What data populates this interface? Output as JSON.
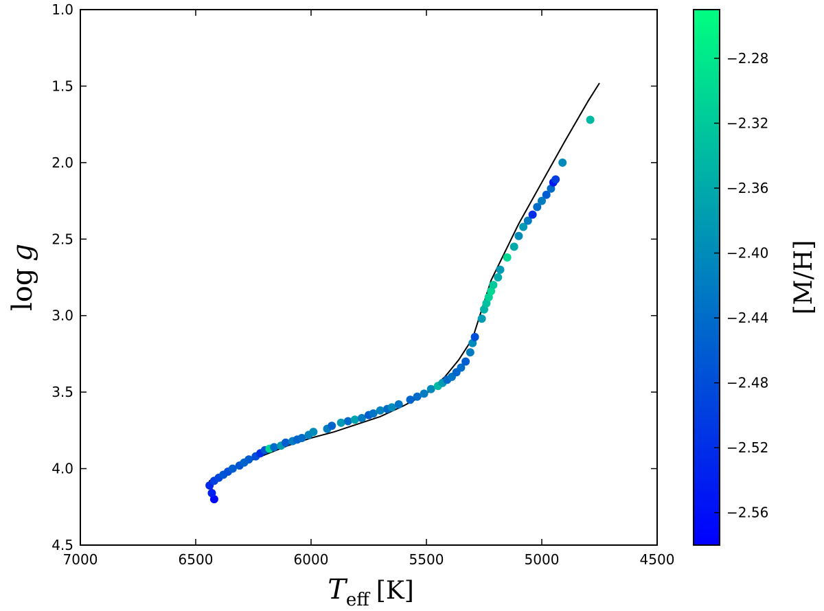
{
  "chart_data": {
    "type": "scatter",
    "title": "",
    "xlabel": "T_eff [K]",
    "xlabel_main": "T",
    "xlabel_sub": "eff",
    "xlabel_unit": "[K]",
    "ylabel": "log g",
    "ylabel_func": "log",
    "ylabel_var": "g",
    "xlim": [
      7000,
      4500
    ],
    "ylim": [
      4.5,
      1.0
    ],
    "x_inverted": true,
    "y_inverted": true,
    "grid": false,
    "x_ticks": [
      "7000",
      "6500",
      "6000",
      "5500",
      "5000",
      "4500"
    ],
    "y_ticks": [
      "1.0",
      "1.5",
      "2.0",
      "2.5",
      "3.0",
      "3.5",
      "4.0",
      "4.5"
    ],
    "colorbar": {
      "label": "[M/H]",
      "range": [
        -2.58,
        -2.25
      ],
      "colormap": "winter",
      "color_low": "#0000ff",
      "color_high": "#00ff80",
      "ticks": [
        "−2.28",
        "−2.32",
        "−2.36",
        "−2.40",
        "−2.44",
        "−2.48",
        "−2.52",
        "−2.56"
      ]
    },
    "isochrone": {
      "color": "#000000",
      "points": [
        [
          6420,
          4.18
        ],
        [
          6430,
          4.13
        ],
        [
          6440,
          4.08
        ],
        [
          6400,
          4.05
        ],
        [
          6350,
          4.01
        ],
        [
          6300,
          3.97
        ],
        [
          6200,
          3.91
        ],
        [
          6100,
          3.85
        ],
        [
          6000,
          3.8
        ],
        [
          5900,
          3.76
        ],
        [
          5800,
          3.71
        ],
        [
          5700,
          3.66
        ],
        [
          5600,
          3.59
        ],
        [
          5500,
          3.51
        ],
        [
          5420,
          3.4
        ],
        [
          5360,
          3.29
        ],
        [
          5300,
          3.15
        ],
        [
          5220,
          2.77
        ],
        [
          5100,
          2.4
        ],
        [
          5000,
          2.13
        ],
        [
          4900,
          1.86
        ],
        [
          4800,
          1.6
        ],
        [
          4750,
          1.48
        ]
      ]
    },
    "points": [
      {
        "teff": 6420,
        "logg": 4.2,
        "mh": -2.57
      },
      {
        "teff": 6430,
        "logg": 4.16,
        "mh": -2.54
      },
      {
        "teff": 6440,
        "logg": 4.11,
        "mh": -2.53
      },
      {
        "teff": 6420,
        "logg": 4.08,
        "mh": -2.5
      },
      {
        "teff": 6400,
        "logg": 4.06,
        "mh": -2.49
      },
      {
        "teff": 6380,
        "logg": 4.04,
        "mh": -2.47
      },
      {
        "teff": 6360,
        "logg": 4.02,
        "mh": -2.48
      },
      {
        "teff": 6340,
        "logg": 4.0,
        "mh": -2.46
      },
      {
        "teff": 6310,
        "logg": 3.98,
        "mh": -2.47
      },
      {
        "teff": 6290,
        "logg": 3.96,
        "mh": -2.45
      },
      {
        "teff": 6270,
        "logg": 3.94,
        "mh": -2.46
      },
      {
        "teff": 6240,
        "logg": 3.92,
        "mh": -2.48
      },
      {
        "teff": 6220,
        "logg": 3.9,
        "mh": -2.52
      },
      {
        "teff": 6200,
        "logg": 3.88,
        "mh": -2.47
      },
      {
        "teff": 6180,
        "logg": 3.87,
        "mh": -2.3
      },
      {
        "teff": 6160,
        "logg": 3.86,
        "mh": -2.44
      },
      {
        "teff": 6130,
        "logg": 3.85,
        "mh": -2.38
      },
      {
        "teff": 6110,
        "logg": 3.83,
        "mh": -2.46
      },
      {
        "teff": 6080,
        "logg": 3.82,
        "mh": -2.42
      },
      {
        "teff": 6060,
        "logg": 3.81,
        "mh": -2.45
      },
      {
        "teff": 6040,
        "logg": 3.8,
        "mh": -2.44
      },
      {
        "teff": 6010,
        "logg": 3.78,
        "mh": -2.41
      },
      {
        "teff": 5990,
        "logg": 3.76,
        "mh": -2.4
      },
      {
        "teff": 5930,
        "logg": 3.74,
        "mh": -2.42
      },
      {
        "teff": 5910,
        "logg": 3.72,
        "mh": -2.45
      },
      {
        "teff": 5870,
        "logg": 3.7,
        "mh": -2.38
      },
      {
        "teff": 5840,
        "logg": 3.69,
        "mh": -2.44
      },
      {
        "teff": 5810,
        "logg": 3.68,
        "mh": -2.37
      },
      {
        "teff": 5780,
        "logg": 3.67,
        "mh": -2.42
      },
      {
        "teff": 5750,
        "logg": 3.65,
        "mh": -2.46
      },
      {
        "teff": 5730,
        "logg": 3.64,
        "mh": -2.43
      },
      {
        "teff": 5700,
        "logg": 3.62,
        "mh": -2.41
      },
      {
        "teff": 5670,
        "logg": 3.61,
        "mh": -2.44
      },
      {
        "teff": 5650,
        "logg": 3.6,
        "mh": -2.4
      },
      {
        "teff": 5620,
        "logg": 3.58,
        "mh": -2.43
      },
      {
        "teff": 5570,
        "logg": 3.55,
        "mh": -2.45
      },
      {
        "teff": 5540,
        "logg": 3.53,
        "mh": -2.44
      },
      {
        "teff": 5510,
        "logg": 3.51,
        "mh": -2.42
      },
      {
        "teff": 5480,
        "logg": 3.48,
        "mh": -2.4
      },
      {
        "teff": 5450,
        "logg": 3.46,
        "mh": -2.34
      },
      {
        "teff": 5430,
        "logg": 3.44,
        "mh": -2.38
      },
      {
        "teff": 5410,
        "logg": 3.42,
        "mh": -2.44
      },
      {
        "teff": 5390,
        "logg": 3.4,
        "mh": -2.43
      },
      {
        "teff": 5370,
        "logg": 3.37,
        "mh": -2.45
      },
      {
        "teff": 5350,
        "logg": 3.34,
        "mh": -2.44
      },
      {
        "teff": 5330,
        "logg": 3.3,
        "mh": -2.46
      },
      {
        "teff": 5310,
        "logg": 3.24,
        "mh": -2.42
      },
      {
        "teff": 5300,
        "logg": 3.18,
        "mh": -2.4
      },
      {
        "teff": 5290,
        "logg": 3.14,
        "mh": -2.48
      },
      {
        "teff": 5260,
        "logg": 3.02,
        "mh": -2.38
      },
      {
        "teff": 5250,
        "logg": 2.96,
        "mh": -2.35
      },
      {
        "teff": 5240,
        "logg": 2.92,
        "mh": -2.33
      },
      {
        "teff": 5230,
        "logg": 2.88,
        "mh": -2.31
      },
      {
        "teff": 5220,
        "logg": 2.84,
        "mh": -2.3
      },
      {
        "teff": 5210,
        "logg": 2.8,
        "mh": -2.32
      },
      {
        "teff": 5190,
        "logg": 2.75,
        "mh": -2.36
      },
      {
        "teff": 5180,
        "logg": 2.7,
        "mh": -2.38
      },
      {
        "teff": 5150,
        "logg": 2.62,
        "mh": -2.3
      },
      {
        "teff": 5120,
        "logg": 2.55,
        "mh": -2.36
      },
      {
        "teff": 5100,
        "logg": 2.48,
        "mh": -2.4
      },
      {
        "teff": 5080,
        "logg": 2.42,
        "mh": -2.38
      },
      {
        "teff": 5060,
        "logg": 2.38,
        "mh": -2.42
      },
      {
        "teff": 5040,
        "logg": 2.34,
        "mh": -2.52
      },
      {
        "teff": 5020,
        "logg": 2.29,
        "mh": -2.44
      },
      {
        "teff": 5000,
        "logg": 2.25,
        "mh": -2.42
      },
      {
        "teff": 4980,
        "logg": 2.21,
        "mh": -2.46
      },
      {
        "teff": 4960,
        "logg": 2.17,
        "mh": -2.44
      },
      {
        "teff": 4950,
        "logg": 2.13,
        "mh": -2.55
      },
      {
        "teff": 4940,
        "logg": 2.11,
        "mh": -2.5
      },
      {
        "teff": 4910,
        "logg": 2.0,
        "mh": -2.4
      },
      {
        "teff": 4790,
        "logg": 1.72,
        "mh": -2.34
      }
    ]
  }
}
